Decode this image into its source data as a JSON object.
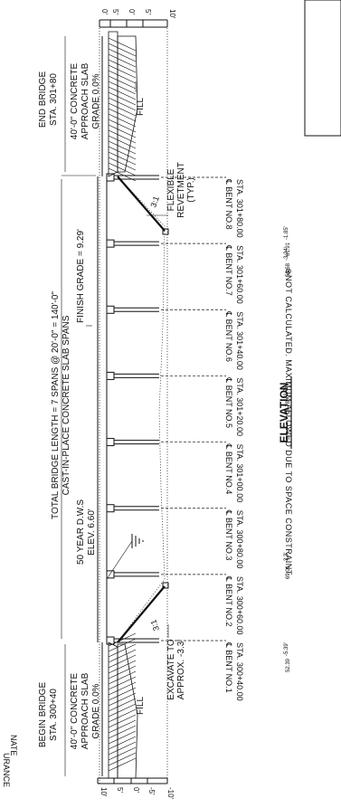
{
  "header": {
    "note": "⊗NOT CALCULATED. MAXIMUM ALLOWED DUE TO SPACE CONSTRAINT.",
    "edge_text_1": "NATE",
    "edge_text_2": "URANCE"
  },
  "labels": {
    "begin_bridge": "BEGIN BRIDGE",
    "begin_station": "STA. 300+40",
    "end_bridge": "END BRIDGE",
    "end_station": "STA. 301+80",
    "total_length": "TOTAL BRIDGE LENGTH = 7 SPANS @ 20'-0\" = 140'-0\"",
    "cast_in_place": "CAST-IN-PLACE CONCRETE SLAB SPANS",
    "finish_grade": "FINISH GRADE = 9.29'",
    "dws_line1": "50 YEAR D.W.S",
    "dws_line2": "ELEV. 6.60'",
    "approach_left_1": "40'-0\" CONCRETE",
    "approach_left_2": "APPROACH SLAB",
    "approach_left_3": "GRADE 0.0%",
    "approach_right_1": "40'-0\" CONCRETE",
    "approach_right_2": "APPROACH SLAB",
    "approach_right_3": "GRADE 0.0%",
    "fill_left": "FILL",
    "fill_right": "FILL",
    "excavate_1": "EXCAVATE TO",
    "excavate_2": "APPROX. -3.3'",
    "revetment_1": "FLEXIBLE",
    "revetment_2": "REVETMENT",
    "revetment_3": "(TYP.)",
    "slope_left": "3:1",
    "slope_right": "3:1",
    "elevation_title": "ELEVATION"
  },
  "scale_left": [
    "10'",
    "5'",
    "0'",
    "-5'",
    "-10'"
  ],
  "scale_right": [
    "0'",
    "5'",
    "0'",
    "5'",
    "10'"
  ],
  "bents": [
    {
      "name": "℄ BENT NO.1",
      "station": "STA. 300+40.00"
    },
    {
      "name": "℄ BENT NO.2",
      "station": "STA. 300+60.00"
    },
    {
      "name": "℄ BENT NO.3",
      "station": "STA. 300+80.00"
    },
    {
      "name": "℄ BENT NO.4",
      "station": "STA. 301+00.00"
    },
    {
      "name": "℄ BENT NO.5",
      "station": "STA. 301+20.00"
    },
    {
      "name": "℄ BENT NO.6",
      "station": "STA. 301+40.00"
    },
    {
      "name": "℄ BENT NO.7",
      "station": "STA. 301+60.00"
    },
    {
      "name": "℄ BENT NO.8",
      "station": "STA. 301+80.00"
    }
  ],
  "elev_marks": [
    {
      "a": "52.39",
      "b": "-5.39'"
    },
    {
      "a": "69.01",
      "b": "-3.3'"
    },
    {
      "a": "18.78",
      "b": "-3.78'"
    },
    {
      "a": "52.58",
      "b": "-3.24'"
    },
    {
      "a": "61.91",
      "b": "-1.85'"
    }
  ]
}
